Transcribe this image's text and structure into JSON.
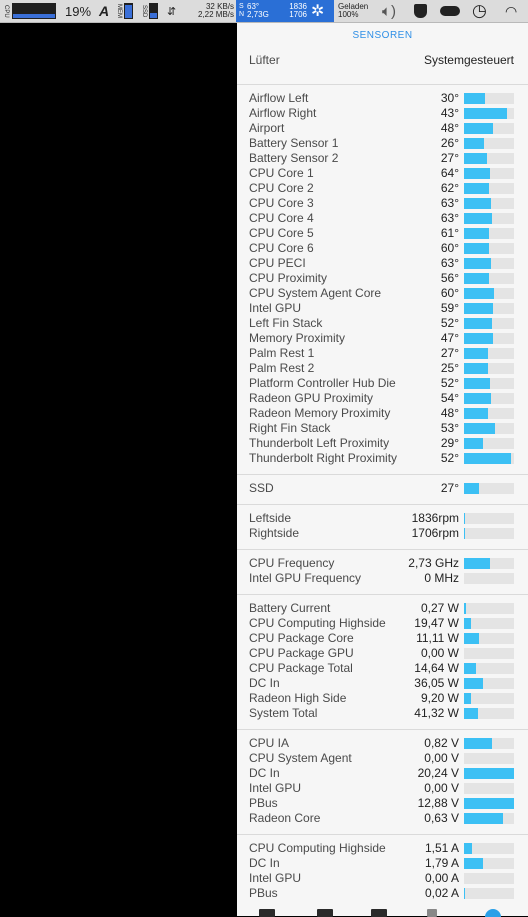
{
  "menubar": {
    "cpu_label": "CPU",
    "cpu_percent": "19%",
    "mem_label": "MEM",
    "ssd_label": "SSD",
    "net_up": "32 KB/s",
    "net_down": "2,22 MB/s",
    "sensor_line1_key": "S",
    "sensor_temp": "63°",
    "sensor_rpm1": "1836",
    "sensor_line2_key": "N",
    "sensor_freq": "2,73G",
    "sensor_rpm2": "1706",
    "battery_status": "Geladen",
    "battery_percent": "100%",
    "icons": [
      "font-a-icon",
      "sliders-icon",
      "gear-icon",
      "volume-icon",
      "shield-icon",
      "cloud-icon",
      "time-machine-icon",
      "wifi-icon"
    ]
  },
  "panel": {
    "header": "SENSOREN",
    "fan_row": {
      "label": "Lüfter",
      "value": "Systemgesteuert"
    },
    "sections": [
      {
        "rows": [
          {
            "label": "Airflow Left",
            "value": "30°",
            "level": 0.42
          },
          {
            "label": "Airflow Right",
            "value": "43°",
            "level": 0.86
          },
          {
            "label": "Airport",
            "value": "48°",
            "level": 0.58
          },
          {
            "label": "Battery Sensor 1",
            "value": "26°",
            "level": 0.4
          },
          {
            "label": "Battery Sensor 2",
            "value": "27°",
            "level": 0.46
          },
          {
            "label": "CPU Core 1",
            "value": "64°",
            "level": 0.52
          },
          {
            "label": "CPU Core 2",
            "value": "62°",
            "level": 0.5
          },
          {
            "label": "CPU Core 3",
            "value": "63°",
            "level": 0.53
          },
          {
            "label": "CPU Core 4",
            "value": "63°",
            "level": 0.55
          },
          {
            "label": "CPU Core 5",
            "value": "61°",
            "level": 0.49
          },
          {
            "label": "CPU Core 6",
            "value": "60°",
            "level": 0.5
          },
          {
            "label": "CPU PECI",
            "value": "63°",
            "level": 0.53
          },
          {
            "label": "CPU Proximity",
            "value": "56°",
            "level": 0.5
          },
          {
            "label": "CPU System Agent Core",
            "value": "60°",
            "level": 0.6
          },
          {
            "label": "Intel GPU",
            "value": "59°",
            "level": 0.58
          },
          {
            "label": "Left Fin Stack",
            "value": "52°",
            "level": 0.56
          },
          {
            "label": "Memory Proximity",
            "value": "47°",
            "level": 0.58
          },
          {
            "label": "Palm Rest 1",
            "value": "27°",
            "level": 0.48
          },
          {
            "label": "Palm Rest 2",
            "value": "25°",
            "level": 0.48
          },
          {
            "label": "Platform Controller Hub Die",
            "value": "52°",
            "level": 0.52
          },
          {
            "label": "Radeon GPU Proximity",
            "value": "54°",
            "level": 0.54
          },
          {
            "label": "Radeon Memory Proximity",
            "value": "48°",
            "level": 0.48
          },
          {
            "label": "Right Fin Stack",
            "value": "53°",
            "level": 0.62
          },
          {
            "label": "Thunderbolt Left Proximity",
            "value": "29°",
            "level": 0.38
          },
          {
            "label": "Thunderbolt Right Proximity",
            "value": "52°",
            "level": 0.94
          }
        ]
      },
      {
        "rows": [
          {
            "label": "SSD",
            "value": "27°",
            "level": 0.3
          }
        ]
      },
      {
        "rows": [
          {
            "label": "Leftside",
            "value": "1836rpm",
            "level": 0.02
          },
          {
            "label": "Rightside",
            "value": "1706rpm",
            "level": 0.02
          }
        ]
      },
      {
        "rows": [
          {
            "label": "CPU Frequency",
            "value": "2,73 GHz",
            "level": 0.52
          },
          {
            "label": "Intel GPU Frequency",
            "value": "0 MHz",
            "level": 0.0
          }
        ]
      },
      {
        "rows": [
          {
            "label": "Battery Current",
            "value": "0,27 W",
            "level": 0.03
          },
          {
            "label": "CPU Computing Highside",
            "value": "19,47 W",
            "level": 0.14
          },
          {
            "label": "CPU Package Core",
            "value": "11,11 W",
            "level": 0.3
          },
          {
            "label": "CPU Package GPU",
            "value": "0,00 W",
            "level": 0.0
          },
          {
            "label": "CPU Package Total",
            "value": "14,64 W",
            "level": 0.24
          },
          {
            "label": "DC In",
            "value": "36,05 W",
            "level": 0.38
          },
          {
            "label": "Radeon High Side",
            "value": "9,20 W",
            "level": 0.14
          },
          {
            "label": "System Total",
            "value": "41,32 W",
            "level": 0.28
          }
        ]
      },
      {
        "rows": [
          {
            "label": "CPU IA",
            "value": "0,82 V",
            "level": 0.56
          },
          {
            "label": "CPU System Agent",
            "value": "0,00 V",
            "level": 0.0
          },
          {
            "label": "DC In",
            "value": "20,24 V",
            "level": 1.0
          },
          {
            "label": "Intel GPU",
            "value": "0,00 V",
            "level": 0.0
          },
          {
            "label": "PBus",
            "value": "12,88 V",
            "level": 1.0
          },
          {
            "label": "Radeon Core",
            "value": "0,63 V",
            "level": 0.78
          }
        ]
      },
      {
        "rows": [
          {
            "label": "CPU Computing Highside",
            "value": "1,51 A",
            "level": 0.16
          },
          {
            "label": "DC In",
            "value": "1,79 A",
            "level": 0.38
          },
          {
            "label": "Intel GPU",
            "value": "0,00 A",
            "level": 0.0
          },
          {
            "label": "PBus",
            "value": "0,02 A",
            "level": 0.02
          }
        ]
      }
    ]
  }
}
